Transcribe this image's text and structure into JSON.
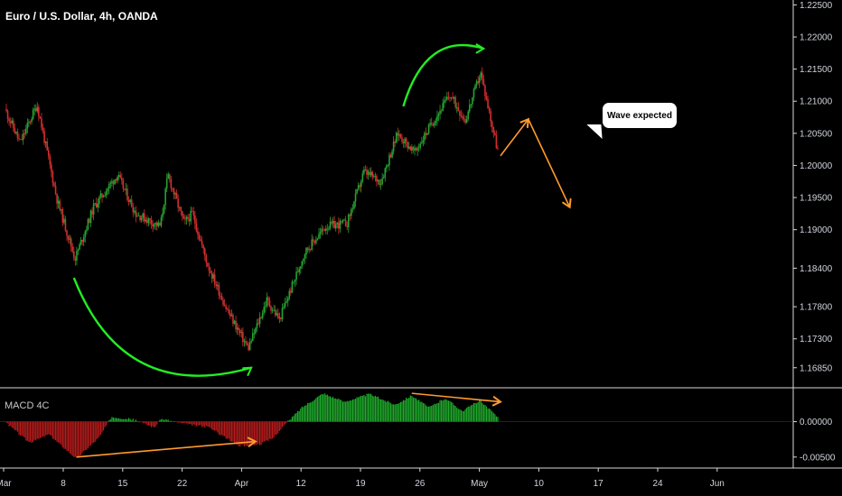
{
  "header": {
    "title": "Euro / U.S. Dollar, 4h, OANDA"
  },
  "indicator": {
    "name": "MACD 4C"
  },
  "annotation": {
    "callout_text": "Wave expected"
  },
  "colors": {
    "up": "#26a232",
    "down": "#d32f2f",
    "macd_up": "#1faa2b",
    "macd_down": "#b71c1c",
    "arrow_green": "#22ee22",
    "arrow_orange": "#ff9a2e",
    "axis_text": "#d1d4dc"
  },
  "chart_data": {
    "type": "candlestick",
    "title": "Euro / U.S. Dollar, 4h, OANDA",
    "price_axis": {
      "ticks": [
        "1.22500",
        "1.22000",
        "1.21500",
        "1.21000",
        "1.20500",
        "1.20000",
        "1.19500",
        "1.19000",
        "1.18400",
        "1.17800",
        "1.17300",
        "1.16850"
      ],
      "ylim": [
        1.1665,
        1.2252
      ]
    },
    "time_axis": {
      "ticks": [
        "Mar",
        "8",
        "15",
        "22",
        "Apr",
        "12",
        "19",
        "26",
        "May",
        "10",
        "17",
        "24",
        "Jun"
      ]
    },
    "price_path": [
      [
        0,
        1.2088
      ],
      [
        1.8,
        1.2035
      ],
      [
        3.8,
        1.2095
      ],
      [
        6.2,
        1.1945
      ],
      [
        8.3,
        1.1855
      ],
      [
        10.5,
        1.1935
      ],
      [
        13.3,
        1.1985
      ],
      [
        15.5,
        1.1925
      ],
      [
        18.4,
        1.1905
      ],
      [
        19.3,
        1.1985
      ],
      [
        21.2,
        1.191
      ],
      [
        22.2,
        1.1925
      ],
      [
        24,
        1.1845
      ],
      [
        26.3,
        1.1775
      ],
      [
        28.8,
        1.1715
      ],
      [
        31,
        1.179
      ],
      [
        32.5,
        1.176
      ],
      [
        35.5,
        1.1865
      ],
      [
        38,
        1.1905
      ],
      [
        40.5,
        1.191
      ],
      [
        42.5,
        1.199
      ],
      [
        44.5,
        1.1975
      ],
      [
        46.5,
        1.205
      ],
      [
        48.5,
        1.202
      ],
      [
        50.5,
        1.2065
      ],
      [
        52.7,
        1.211
      ],
      [
        54.5,
        1.207
      ],
      [
        56.3,
        1.2145
      ],
      [
        58.3,
        1.2025
      ]
    ],
    "macd_axis": {
      "ticks": [
        "0.00000",
        "-0.00500"
      ],
      "ylim": [
        -0.0063,
        0.0044
      ]
    },
    "macd_path": [
      [
        0,
        -0.0002
      ],
      [
        2.8,
        -0.003
      ],
      [
        5,
        -0.0018
      ],
      [
        8.3,
        -0.0052
      ],
      [
        11,
        -0.0022
      ],
      [
        12.5,
        0.0007
      ],
      [
        15,
        0.0003
      ],
      [
        17.5,
        -0.0008
      ],
      [
        18.4,
        0.0004
      ],
      [
        21,
        -0.0003
      ],
      [
        24,
        -0.0008
      ],
      [
        27.5,
        -0.0034
      ],
      [
        30,
        -0.0032
      ],
      [
        31.5,
        -0.0024
      ],
      [
        33,
        -0.0004
      ],
      [
        35,
        0.002
      ],
      [
        37.5,
        0.004
      ],
      [
        40,
        0.0028
      ],
      [
        43,
        0.0039
      ],
      [
        46,
        0.0024
      ],
      [
        48,
        0.0037
      ],
      [
        50,
        0.002
      ],
      [
        52,
        0.0033
      ],
      [
        54,
        0.0015
      ],
      [
        56,
        0.003
      ],
      [
        58.3,
        0.0005
      ]
    ],
    "annotations": {
      "green_arc_1": {
        "from": [
          8,
          1.1825
        ],
        "to": [
          29,
          1.1685
        ]
      },
      "green_arc_2": {
        "from": [
          47,
          1.2092
        ],
        "to": [
          56.5,
          1.2182
        ]
      },
      "orange_divergence_macd_1": {
        "from": [
          8.3,
          -0.005
        ],
        "to": [
          29.5,
          -0.0028
        ]
      },
      "orange_divergence_macd_2": {
        "from": [
          48,
          0.004
        ],
        "to": [
          58.5,
          0.0028
        ]
      },
      "orange_projection": [
        [
          58.5,
          1.2015
        ],
        [
          61.8,
          1.2072
        ],
        [
          66.7,
          1.1935
        ]
      ]
    }
  }
}
